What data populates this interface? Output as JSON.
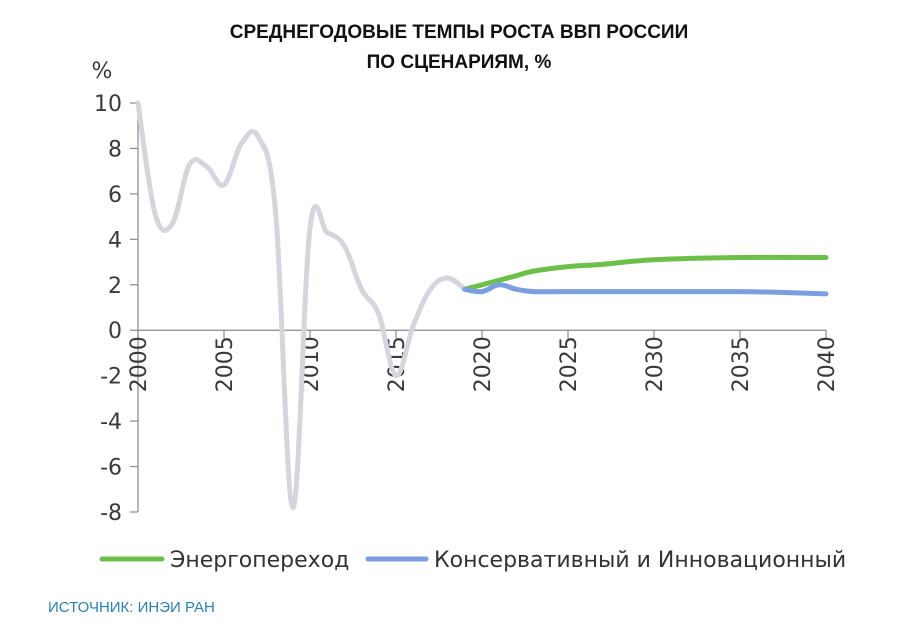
{
  "chart_data": {
    "type": "line",
    "title_lines": [
      "СРЕДНЕГОДОВЫЕ ТЕМПЫ РОСТА ВВП РОССИИ",
      "ПО СЦЕНАРИЯМ, %"
    ],
    "ylabel": "%",
    "source": "ИСТОЧНИК: ИНЭИ РАН",
    "xlim": [
      2000,
      2040
    ],
    "ylim": [
      -8,
      10
    ],
    "x_ticks": [
      "2000",
      "2005",
      "2010",
      "2015",
      "2020",
      "2025",
      "2030",
      "2035",
      "2040"
    ],
    "y_ticks": [
      "10",
      "8",
      "6",
      "4",
      "2",
      "0",
      "-2",
      "-4",
      "-6",
      "-8"
    ],
    "history": {
      "color": "#d5d5dd",
      "x": [
        2000,
        2001,
        2002,
        2003,
        2004,
        2005,
        2006,
        2007,
        2008,
        2009,
        2010,
        2011,
        2012,
        2013,
        2014,
        2015,
        2016,
        2017,
        2018,
        2019
      ],
      "y": [
        10.0,
        5.1,
        4.7,
        7.3,
        7.2,
        6.4,
        8.2,
        8.5,
        5.2,
        -7.8,
        4.5,
        4.3,
        3.7,
        1.8,
        0.7,
        -2.0,
        0.2,
        1.8,
        2.3,
        1.8
      ]
    },
    "series": [
      {
        "name": "Энергопереход",
        "color": "#6cc04a",
        "x": [
          2019,
          2020,
          2021,
          2022,
          2023,
          2025,
          2027,
          2030,
          2035,
          2040
        ],
        "y": [
          1.8,
          2.0,
          2.2,
          2.4,
          2.6,
          2.8,
          2.9,
          3.1,
          3.2,
          3.2
        ]
      },
      {
        "name": "Консервативный и Инновационный",
        "color": "#7a9ee0",
        "x": [
          2019,
          2020,
          2021,
          2022,
          2023,
          2025,
          2030,
          2035,
          2038,
          2040
        ],
        "y": [
          1.8,
          1.7,
          2.0,
          1.8,
          1.7,
          1.7,
          1.7,
          1.7,
          1.65,
          1.6
        ]
      }
    ],
    "legend_position": "bottom",
    "grid": false
  }
}
